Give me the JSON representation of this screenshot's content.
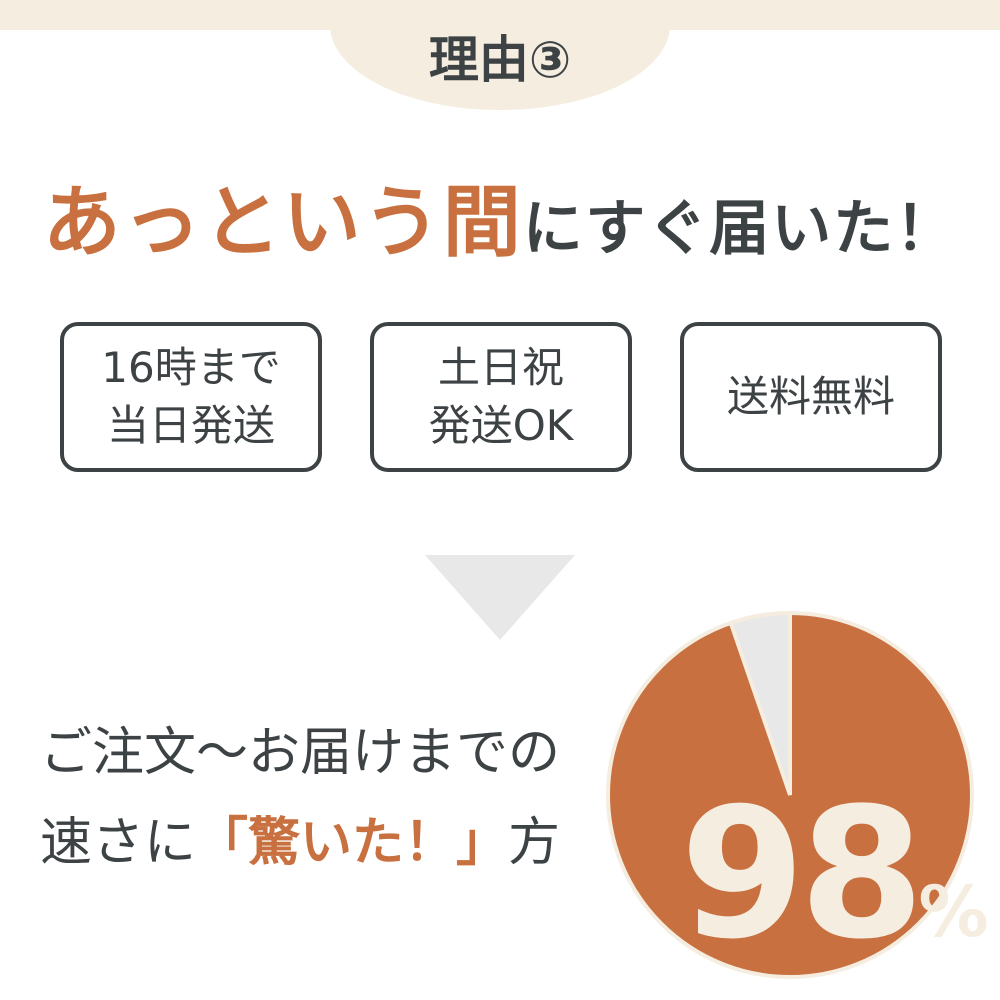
{
  "header": {
    "title": "理由③"
  },
  "headline": {
    "accent": "あっという間",
    "rest": "にすぐ届いた！"
  },
  "features": [
    {
      "line1": "16時まで",
      "line2": "当日発送"
    },
    {
      "line1": "土日祝",
      "line2": "発送OK"
    },
    {
      "line1": "送料無料",
      "line2": ""
    }
  ],
  "statement": {
    "line1": "ご注文～お届けまでの",
    "line2_pre": "速さに",
    "line2_accent": "「驚いた！」",
    "line2_post": "方"
  },
  "pie": {
    "percent_value": 98,
    "number": "98",
    "symbol": "%"
  },
  "colors": {
    "accent": "#c8703f",
    "dark": "#3d4245",
    "cream": "#f5ede0",
    "gray": "#e8e8e8"
  }
}
